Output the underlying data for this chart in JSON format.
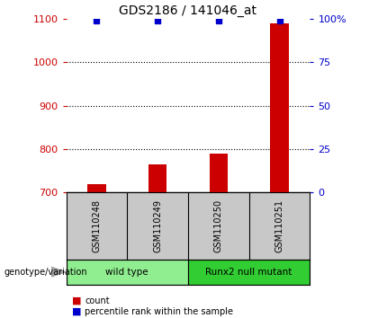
{
  "title": "GDS2186 / 141046_at",
  "samples": [
    "GSM110248",
    "GSM110249",
    "GSM110250",
    "GSM110251"
  ],
  "counts": [
    720,
    765,
    790,
    1090
  ],
  "percentiles": [
    99,
    99,
    99,
    99
  ],
  "ylim_left": [
    700,
    1100
  ],
  "ylim_right": [
    0,
    100
  ],
  "yticks_left": [
    700,
    800,
    900,
    1000,
    1100
  ],
  "yticks_right": [
    0,
    25,
    50,
    75,
    100
  ],
  "ytick_labels_right": [
    "0",
    "25",
    "50",
    "75",
    "100%"
  ],
  "bar_color": "#cc0000",
  "dot_color": "#0000cc",
  "groups": [
    {
      "label": "wild type",
      "samples": [
        0,
        1
      ],
      "color": "#90ee90"
    },
    {
      "label": "Runx2 null mutant",
      "samples": [
        2,
        3
      ],
      "color": "#32cd32"
    }
  ],
  "group_label": "genotype/variation",
  "legend_count_label": "count",
  "legend_pct_label": "percentile rank within the sample",
  "bg_color": "#ffffff",
  "plot_bg": "#ffffff",
  "sample_box_color": "#c8c8c8",
  "grid_style": "dotted",
  "grid_color": "#000000",
  "bar_width": 0.3
}
